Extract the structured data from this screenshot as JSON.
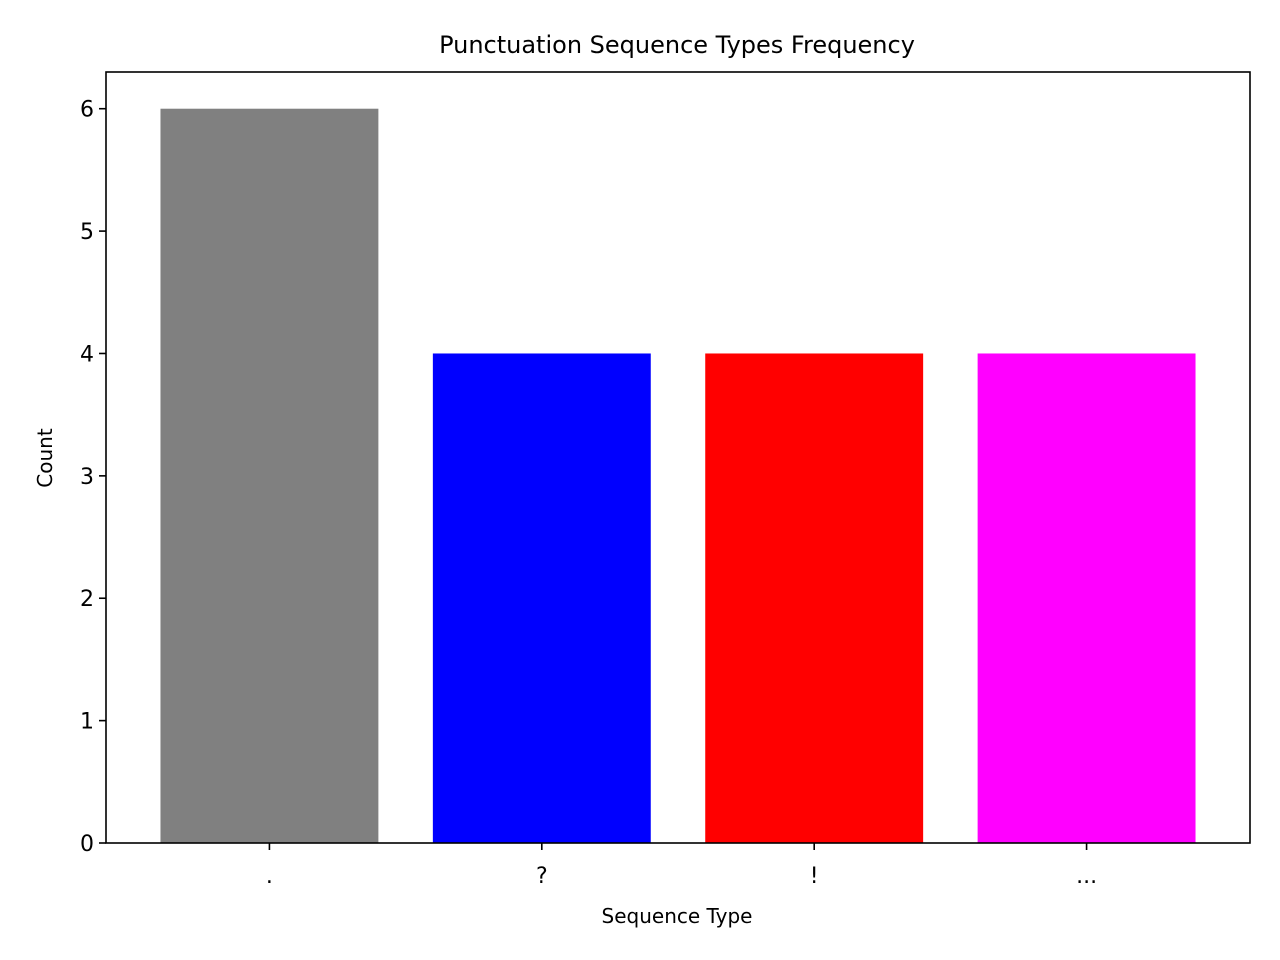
{
  "chart_data": {
    "type": "bar",
    "title": "Punctuation Sequence Types Frequency",
    "xlabel": "Sequence Type",
    "ylabel": "Count",
    "categories": [
      ".",
      "?",
      "!",
      "..."
    ],
    "values": [
      6,
      4,
      4,
      4
    ],
    "bar_colors": [
      "#808080",
      "#0000ff",
      "#ff0000",
      "#ff00ff"
    ],
    "ylim": [
      0,
      6.3
    ],
    "yticks": [
      0,
      1,
      2,
      3,
      4,
      5,
      6
    ],
    "grid": false,
    "legend": "none"
  }
}
